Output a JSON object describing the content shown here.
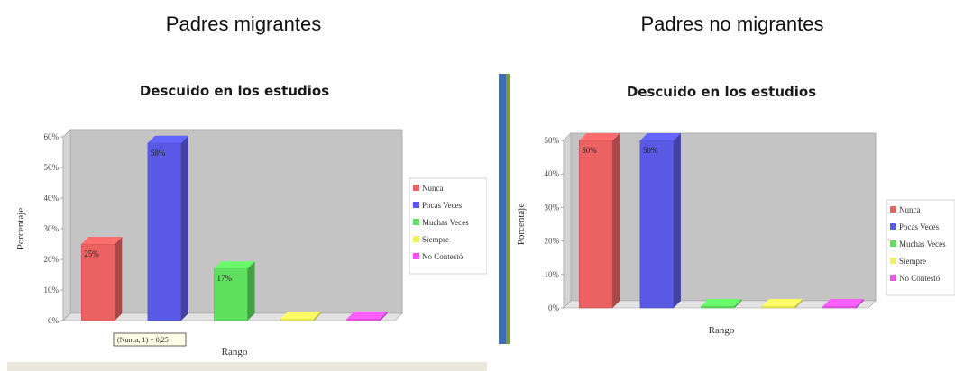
{
  "headers": {
    "left": "Padres migrantes",
    "right": "Padres no migrantes"
  },
  "colors": {
    "Nunca": "#ec6262",
    "Pocas Veces": "#5a5ae6",
    "Muchas Veces": "#5fe05f",
    "Siempre": "#f2f25a",
    "No Contestó": "#ec55ec"
  },
  "chart_data": [
    {
      "type": "bar",
      "title": "Descuido en los estudios",
      "xlabel": "Rango",
      "ylabel": "Porcentaje",
      "categories": [
        "Nunca",
        "Pocas Veces",
        "Muchas Veces",
        "Siempre",
        "No Contestó"
      ],
      "values": [
        25,
        58,
        17,
        0,
        0
      ],
      "data_labels": [
        "25%",
        "58%",
        "17%",
        "",
        ""
      ],
      "ylim": [
        0,
        60
      ],
      "yticks": [
        "0%",
        "10%",
        "20%",
        "30%",
        "40%",
        "50%",
        "60%"
      ],
      "legend": [
        "Nunca",
        "Pocas Veces",
        "Muchas Veces",
        "Siempre",
        "No Contestó"
      ],
      "legend_position": "right",
      "tooltip": "(Nunca, 1) = 0,25"
    },
    {
      "type": "bar",
      "title": "Descuido en los estudios",
      "xlabel": "Rango",
      "ylabel": "Porcentaje",
      "categories": [
        "Nunca",
        "Pocas Veces",
        "Muchas Veces",
        "Siempre",
        "No Contestó"
      ],
      "values": [
        50,
        50,
        0,
        0,
        0
      ],
      "data_labels": [
        "50%",
        "50%",
        "",
        "",
        ""
      ],
      "ylim": [
        0,
        50
      ],
      "yticks": [
        "0%",
        "10%",
        "20%",
        "30%",
        "40%",
        "50%"
      ],
      "legend": [
        "Nunca",
        "Pocas Veces",
        "Muchas Veces",
        "Siempre",
        "No Contestó"
      ],
      "legend_position": "right"
    }
  ]
}
